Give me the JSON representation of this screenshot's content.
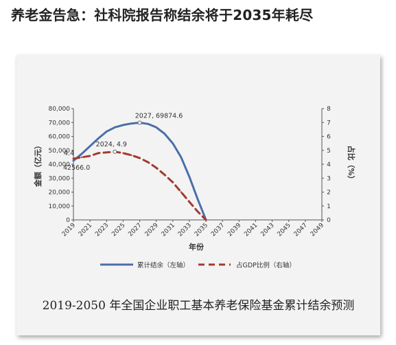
{
  "headline": "养老金告急：社科院报告称结余将于2035年耗尽",
  "caption": "2019-2050 年全国企业职工基本养老保险基金累计结余预测",
  "chart_data": {
    "type": "line",
    "x": [
      2019,
      2021,
      2023,
      2025,
      2027,
      2029,
      2031,
      2033,
      2035
    ],
    "x_ticks": [
      "2019",
      "2021",
      "2023",
      "2025",
      "2027",
      "2029",
      "2031",
      "2033",
      "2035",
      "2037",
      "2039",
      "2041",
      "2043",
      "2045",
      "2047",
      "2049"
    ],
    "xlabel": "年份",
    "ylabel_left": "金额（亿元）",
    "ylabel_right": "占比（%）",
    "ylim_left": [
      0,
      80000
    ],
    "ylim_right": [
      0,
      8
    ],
    "y_ticks_left": [
      "0",
      "10,000",
      "20,000",
      "30,000",
      "40,000",
      "50,000",
      "60,000",
      "70,000",
      "80,000"
    ],
    "y_ticks_right": [
      "0",
      "1",
      "2",
      "3",
      "4",
      "5",
      "6",
      "7",
      "8"
    ],
    "series": [
      {
        "name": "累计结余（左轴）",
        "axis": "left",
        "style": "solid",
        "color": "#4a6ea8",
        "x": [
          2019,
          2020,
          2021,
          2022,
          2023,
          2024,
          2025,
          2026,
          2027,
          2028,
          2029,
          2030,
          2031,
          2032,
          2033,
          2034,
          2035
        ],
        "values": [
          42566.0,
          47500,
          53000,
          58500,
          63500,
          66500,
          68200,
          69300,
          69874.6,
          69000,
          66500,
          62000,
          55000,
          45000,
          31000,
          15000,
          0
        ]
      },
      {
        "name": "占GDP比例（右轴）",
        "axis": "right",
        "style": "dashed",
        "color": "#a33a2e",
        "x": [
          2019,
          2020,
          2021,
          2022,
          2023,
          2024,
          2025,
          2026,
          2027,
          2028,
          2029,
          2030,
          2031,
          2032,
          2033,
          2034,
          2035
        ],
        "values": [
          4.4,
          4.5,
          4.6,
          4.8,
          4.85,
          4.9,
          4.8,
          4.65,
          4.45,
          4.15,
          3.75,
          3.25,
          2.7,
          2.0,
          1.3,
          0.6,
          0
        ]
      }
    ],
    "annotations": [
      {
        "text": "4.4",
        "x": 2019,
        "y": 4.4,
        "axis": "right"
      },
      {
        "text": "42566.0",
        "x": 2019,
        "y": 42566.0,
        "axis": "left"
      },
      {
        "text": "2024, 4.9",
        "x": 2024,
        "y": 4.9,
        "axis": "right"
      },
      {
        "text": "2027, 69874.6",
        "x": 2027,
        "y": 69874.6,
        "axis": "left"
      }
    ],
    "legend_position": "bottom",
    "grid": false
  }
}
